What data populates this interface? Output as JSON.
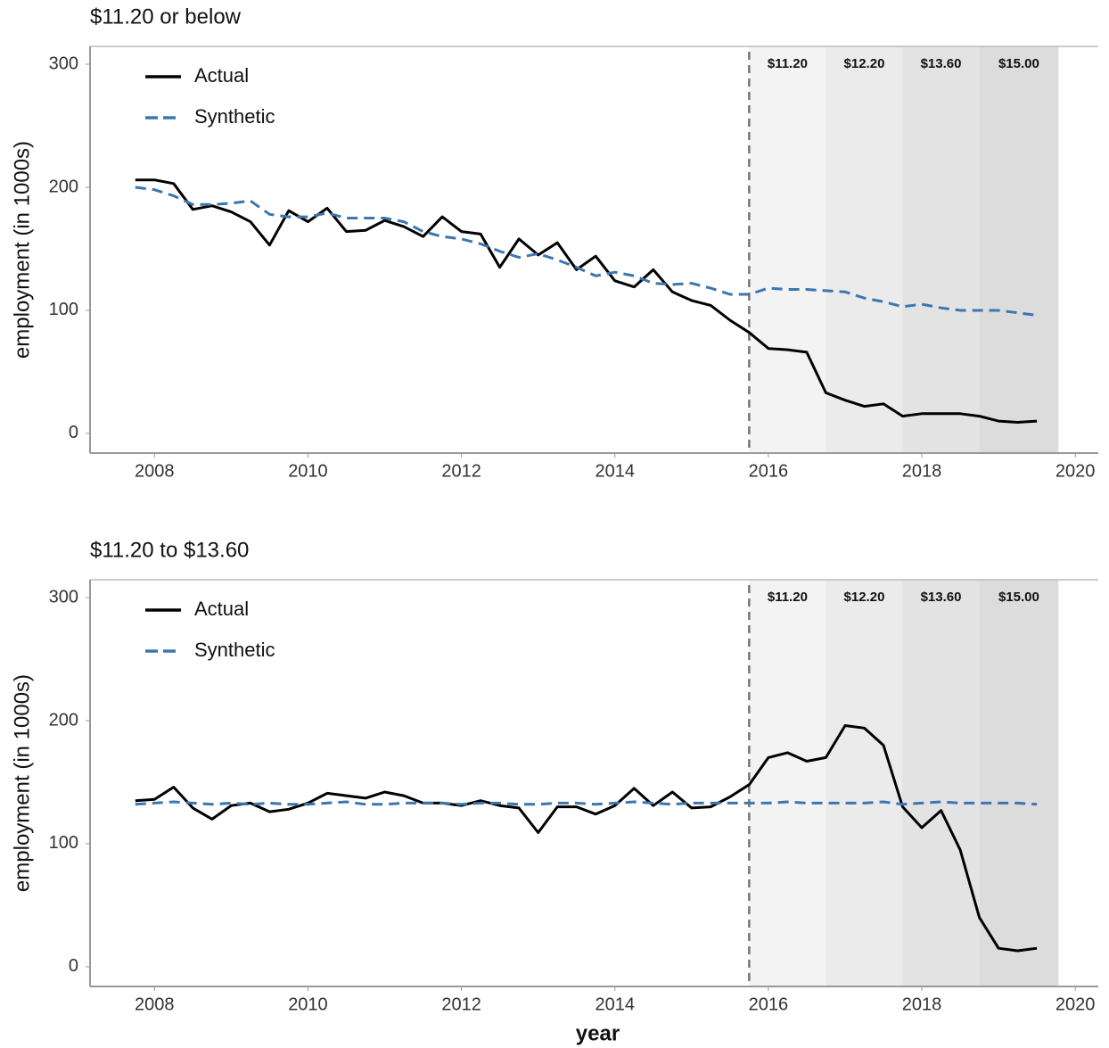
{
  "chart_data": [
    {
      "type": "line",
      "title": "$11.20 or below",
      "y_label": "employment (in 1000s)",
      "x": [
        2007.75,
        2008,
        2008.25,
        2008.5,
        2008.75,
        2009,
        2009.25,
        2009.5,
        2009.75,
        2010,
        2010.25,
        2010.5,
        2010.75,
        2011,
        2011.25,
        2011.5,
        2011.75,
        2012,
        2012.25,
        2012.5,
        2012.75,
        2013,
        2013.25,
        2013.5,
        2013.75,
        2014,
        2014.25,
        2014.5,
        2014.75,
        2015,
        2015.25,
        2015.5,
        2015.75,
        2016,
        2016.25,
        2016.5,
        2016.75,
        2017,
        2017.25,
        2017.5,
        2017.75,
        2018,
        2018.25,
        2018.5,
        2018.75,
        2019,
        2019.25,
        2019.5
      ],
      "series": [
        {
          "name": "Actual",
          "color": "#000000",
          "dash": false,
          "values": [
            206,
            206,
            203,
            182,
            185,
            180,
            172,
            153,
            181,
            172,
            183,
            164,
            165,
            173,
            168,
            160,
            176,
            164,
            162,
            135,
            158,
            145,
            155,
            133,
            144,
            124,
            119,
            133,
            115,
            108,
            104,
            92,
            82,
            69,
            68,
            66,
            33,
            27,
            22,
            24,
            14,
            16,
            16,
            16,
            14,
            10,
            9,
            10
          ]
        },
        {
          "name": "Synthetic",
          "color": "#3b76b1",
          "dash": true,
          "values": [
            200,
            198,
            193,
            186,
            186,
            187,
            189,
            178,
            176,
            176,
            179,
            175,
            175,
            175,
            172,
            164,
            160,
            158,
            154,
            148,
            143,
            146,
            141,
            135,
            128,
            131,
            128,
            122,
            121,
            122,
            118,
            113,
            113,
            118,
            117,
            117,
            116,
            115,
            110,
            107,
            103,
            105,
            102,
            100,
            100,
            100,
            98,
            96
          ]
        }
      ],
      "periods": [
        {
          "start": 2015.75,
          "end": 2016.75,
          "label": "$11.20",
          "color": "#f3f3f3"
        },
        {
          "start": 2016.75,
          "end": 2017.75,
          "label": "$12.20",
          "color": "#ebebeb"
        },
        {
          "start": 2017.75,
          "end": 2018.75,
          "label": "$13.60",
          "color": "#e3e3e3"
        },
        {
          "start": 2018.75,
          "end": 2019.78,
          "label": "$15.00",
          "color": "#dcdcdc"
        }
      ],
      "event_x": 2015.75,
      "xlim": [
        2007.16,
        2020.3
      ],
      "xticks": [
        2008,
        2010,
        2012,
        2014,
        2016,
        2018,
        2020
      ],
      "ylim": [
        -16,
        314.5
      ],
      "yticks": [
        0,
        100,
        200,
        300
      ],
      "legend": "top-left"
    },
    {
      "type": "line",
      "title": "$11.20 to $13.60",
      "y_label": "employment (in 1000s)",
      "x_label": "year",
      "x": [
        2007.75,
        2008,
        2008.25,
        2008.5,
        2008.75,
        2009,
        2009.25,
        2009.5,
        2009.75,
        2010,
        2010.25,
        2010.5,
        2010.75,
        2011,
        2011.25,
        2011.5,
        2011.75,
        2012,
        2012.25,
        2012.5,
        2012.75,
        2013,
        2013.25,
        2013.5,
        2013.75,
        2014,
        2014.25,
        2014.5,
        2014.75,
        2015,
        2015.25,
        2015.5,
        2015.75,
        2016,
        2016.25,
        2016.5,
        2016.75,
        2017,
        2017.25,
        2017.5,
        2017.75,
        2018,
        2018.25,
        2018.5,
        2018.75,
        2019,
        2019.25,
        2019.5
      ],
      "series": [
        {
          "name": "Actual",
          "color": "#000000",
          "dash": false,
          "values": [
            135,
            136,
            146,
            129,
            120,
            131,
            133,
            126,
            128,
            133,
            141,
            139,
            137,
            142,
            139,
            133,
            133,
            131,
            135,
            131,
            129,
            109,
            130,
            130,
            124,
            131,
            145,
            131,
            142,
            129,
            130,
            138,
            148,
            170,
            174,
            167,
            170,
            196,
            194,
            180,
            130,
            113,
            127,
            95,
            40,
            15,
            13,
            15
          ]
        },
        {
          "name": "Synthetic",
          "color": "#3b76b1",
          "dash": true,
          "values": [
            132,
            133,
            134,
            133,
            132,
            133,
            132,
            133,
            132,
            132,
            133,
            134,
            132,
            132,
            133,
            133,
            133,
            132,
            133,
            133,
            132,
            132,
            133,
            133,
            132,
            133,
            134,
            133,
            132,
            133,
            133,
            133,
            133,
            133,
            134,
            133,
            133,
            133,
            133,
            134,
            132,
            133,
            134,
            133,
            133,
            133,
            133,
            132
          ]
        }
      ],
      "periods": [
        {
          "start": 2015.75,
          "end": 2016.75,
          "label": "$11.20",
          "color": "#f3f3f3"
        },
        {
          "start": 2016.75,
          "end": 2017.75,
          "label": "$12.20",
          "color": "#ebebeb"
        },
        {
          "start": 2017.75,
          "end": 2018.75,
          "label": "$13.60",
          "color": "#e3e3e3"
        },
        {
          "start": 2018.75,
          "end": 2019.78,
          "label": "$15.00",
          "color": "#dcdcdc"
        }
      ],
      "event_x": 2015.75,
      "xlim": [
        2007.16,
        2020.3
      ],
      "xticks": [
        2008,
        2010,
        2012,
        2014,
        2016,
        2018,
        2020
      ],
      "ylim": [
        -16,
        314.5
      ],
      "yticks": [
        0,
        100,
        200,
        300
      ],
      "legend": "top-left"
    }
  ]
}
